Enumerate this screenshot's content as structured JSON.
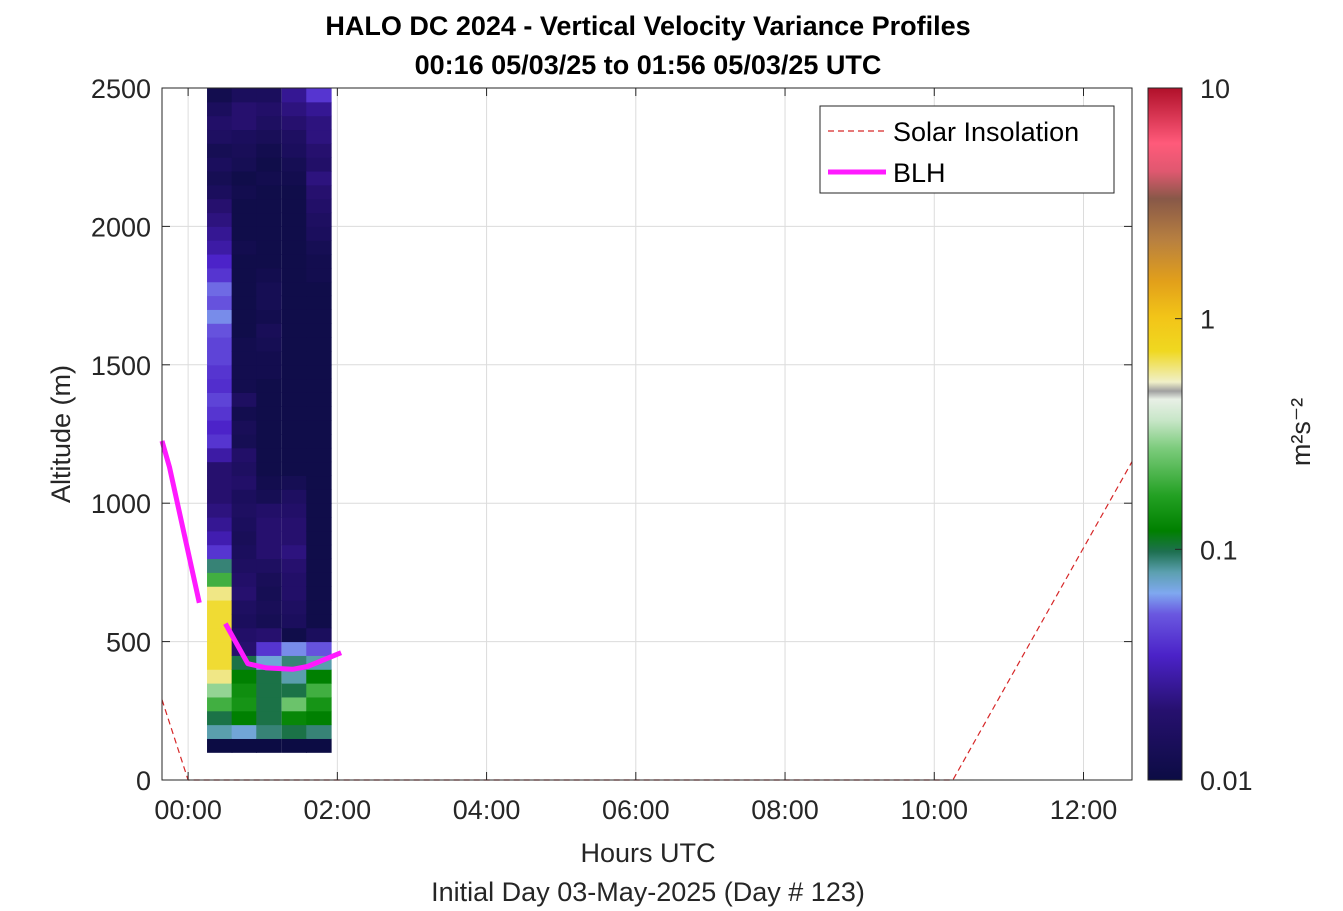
{
  "chart_data": {
    "type": "heatmap",
    "title": "HALO DC 2024 - Vertical Velocity Variance Profiles",
    "subtitle": "00:16 05/03/25 to 01:56 05/03/25  UTC",
    "xlabel": "Hours UTC",
    "xlabel2": "Initial Day 03-May-2025 (Day # 123)",
    "ylabel": "Altitude (m)",
    "xlim": [
      -0.35,
      12.65
    ],
    "ylim": [
      0,
      2500
    ],
    "xticks": [
      0,
      2,
      4,
      6,
      8,
      10,
      12
    ],
    "xtick_labels": [
      "00:00",
      "02:00",
      "04:00",
      "06:00",
      "08:00",
      "10:00",
      "12:00"
    ],
    "yticks": [
      0,
      500,
      1000,
      1500,
      2000,
      2500
    ],
    "ytick_labels": [
      "0",
      "500",
      "1000",
      "1500",
      "2000",
      "2500"
    ],
    "grid": true,
    "legend": {
      "placement": "top-right",
      "entries": [
        {
          "label": "Solar Insolation",
          "style": "dashed",
          "color": "#d62728"
        },
        {
          "label": "BLH",
          "style": "solid",
          "color": "#ff1aff"
        }
      ]
    },
    "colorbar": {
      "label": "m²s⁻²",
      "scale": "log",
      "range": [
        0.01,
        10
      ],
      "ticks": [
        0.01,
        0.1,
        1,
        10
      ],
      "tick_labels": [
        "0.01",
        "0.1",
        "1",
        "10"
      ]
    },
    "heatmap": {
      "x_centers": [
        0.42,
        0.75,
        1.08,
        1.42,
        1.75
      ],
      "cell_width_hours": 0.333,
      "y_start": 100,
      "cell_height": 50,
      "cell_count": 48,
      "description_rows_low_to_high": "variance values (m^2 s^-2) per column from 100 m upward",
      "columns": [
        [
          0.01,
          0.08,
          0.1,
          0.2,
          0.3,
          0.6,
          0.7,
          0.7,
          0.7,
          0.7,
          0.7,
          0.6,
          0.2,
          0.09,
          0.04,
          0.03,
          0.025,
          0.022,
          0.02,
          0.02,
          0.02,
          0.028,
          0.04,
          0.035,
          0.04,
          0.045,
          0.038,
          0.04,
          0.045,
          0.045,
          0.05,
          0.06,
          0.05,
          0.055,
          0.04,
          0.035,
          0.028,
          0.025,
          0.022,
          0.02,
          0.015,
          0.013,
          0.015,
          0.013,
          0.016,
          0.018,
          0.015,
          0.012
        ],
        [
          0.01,
          0.07,
          0.12,
          0.15,
          0.14,
          0.12,
          0.1,
          0.02,
          0.018,
          0.015,
          0.016,
          0.02,
          0.018,
          0.016,
          0.015,
          0.014,
          0.015,
          0.016,
          0.015,
          0.018,
          0.016,
          0.018,
          0.013,
          0.014,
          0.012,
          0.016,
          0.012,
          0.012,
          0.012,
          0.012,
          0.011,
          0.011,
          0.011,
          0.011,
          0.011,
          0.011,
          0.012,
          0.011,
          0.011,
          0.011,
          0.012,
          0.011,
          0.013,
          0.014,
          0.015,
          0.02,
          0.02,
          0.015
        ],
        [
          0.01,
          0.09,
          0.1,
          0.1,
          0.1,
          0.1,
          0.07,
          0.04,
          0.02,
          0.013,
          0.014,
          0.013,
          0.014,
          0.016,
          0.02,
          0.02,
          0.02,
          0.018,
          0.013,
          0.012,
          0.011,
          0.011,
          0.011,
          0.011,
          0.011,
          0.011,
          0.011,
          0.012,
          0.012,
          0.013,
          0.014,
          0.012,
          0.013,
          0.013,
          0.012,
          0.011,
          0.011,
          0.011,
          0.011,
          0.011,
          0.011,
          0.012,
          0.011,
          0.012,
          0.014,
          0.016,
          0.018,
          0.015
        ],
        [
          0.01,
          0.1,
          0.13,
          0.25,
          0.1,
          0.08,
          0.09,
          0.06,
          0.011,
          0.015,
          0.016,
          0.018,
          0.018,
          0.02,
          0.022,
          0.02,
          0.02,
          0.018,
          0.016,
          0.013,
          0.011,
          0.011,
          0.011,
          0.011,
          0.011,
          0.011,
          0.011,
          0.011,
          0.011,
          0.011,
          0.011,
          0.011,
          0.011,
          0.011,
          0.011,
          0.011,
          0.011,
          0.011,
          0.011,
          0.011,
          0.011,
          0.012,
          0.013,
          0.015,
          0.016,
          0.02,
          0.022,
          0.025
        ],
        [
          0.01,
          0.09,
          0.12,
          0.15,
          0.2,
          0.12,
          0.08,
          0.05,
          0.015,
          0.011,
          0.011,
          0.011,
          0.011,
          0.011,
          0.011,
          0.011,
          0.011,
          0.011,
          0.011,
          0.011,
          0.011,
          0.011,
          0.011,
          0.011,
          0.011,
          0.011,
          0.011,
          0.011,
          0.011,
          0.011,
          0.011,
          0.011,
          0.011,
          0.011,
          0.012,
          0.012,
          0.013,
          0.015,
          0.016,
          0.018,
          0.02,
          0.022,
          0.018,
          0.02,
          0.022,
          0.022,
          0.025,
          0.04
        ]
      ]
    },
    "series": [
      {
        "name": "BLH",
        "color": "#ff1aff",
        "segments": [
          {
            "x": [
              -0.35,
              -0.25,
              0.15
            ],
            "y": [
              1225,
              1130,
              640
            ]
          },
          {
            "x": [
              0.5,
              0.8,
              1.05,
              1.4,
              1.6,
              2.05
            ],
            "y": [
              565,
              420,
              405,
              400,
              410,
              460
            ]
          }
        ]
      },
      {
        "name": "Solar Insolation",
        "color": "#d62728",
        "dashed": true,
        "x": [
          -0.35,
          0.0,
          10.25,
          12.65
        ],
        "y": [
          290,
          0,
          0,
          1150
        ]
      }
    ]
  }
}
